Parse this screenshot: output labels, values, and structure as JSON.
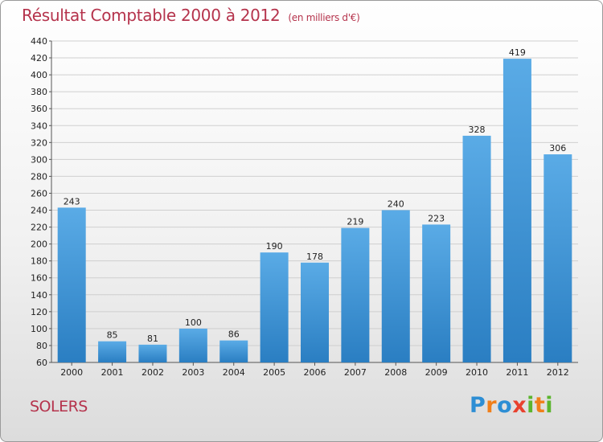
{
  "header": {
    "title": "Résultat Comptable 2000 à 2012",
    "subtitle": "(en milliers d'€)"
  },
  "footer": {
    "place": "SOLERS",
    "logo_letters": [
      {
        "ch": "P",
        "color": "#2d8ed4"
      },
      {
        "ch": "r",
        "color": "#f07f1a"
      },
      {
        "ch": "o",
        "color": "#2d8ed4"
      },
      {
        "ch": "x",
        "color": "#e8412e"
      },
      {
        "ch": "i",
        "color": "#5bb52e"
      },
      {
        "ch": "t",
        "color": "#f07f1a"
      },
      {
        "ch": "i",
        "color": "#5bb52e"
      }
    ]
  },
  "colors": {
    "title": "#b5334c",
    "bar_top": "#5aabe6",
    "bar_bottom": "#2a7ec2",
    "grid": "#cfcfcf"
  },
  "chart_data": {
    "type": "bar",
    "title": "Résultat Comptable 2000 à 2012",
    "subtitle": "(en milliers d'€)",
    "xlabel": "",
    "ylabel": "",
    "categories": [
      "2000",
      "2001",
      "2002",
      "2003",
      "2004",
      "2005",
      "2006",
      "2007",
      "2008",
      "2009",
      "2010",
      "2011",
      "2012"
    ],
    "values": [
      243,
      85,
      81,
      100,
      86,
      190,
      178,
      219,
      240,
      223,
      328,
      419,
      306
    ],
    "ylim": [
      60,
      440
    ],
    "yticks": [
      60,
      80,
      100,
      120,
      140,
      160,
      180,
      200,
      220,
      240,
      260,
      280,
      300,
      320,
      340,
      360,
      380,
      400,
      420,
      440
    ],
    "grid": true
  }
}
